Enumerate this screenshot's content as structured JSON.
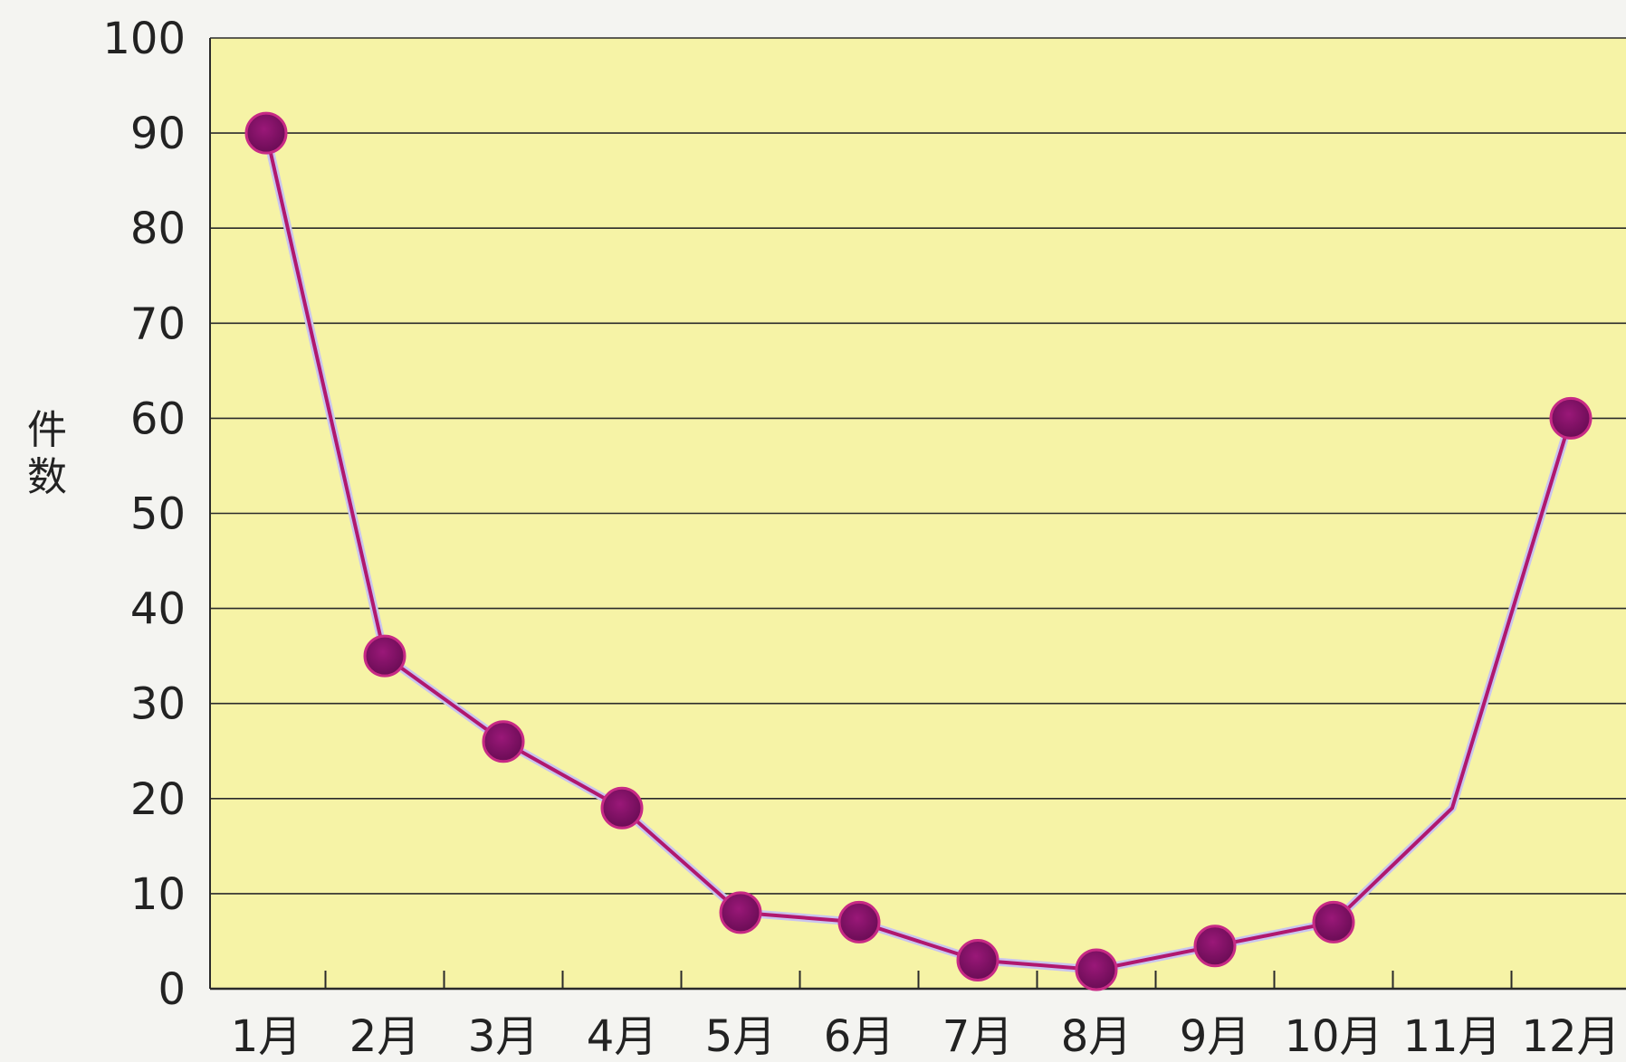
{
  "chart_data": {
    "type": "line",
    "title": "",
    "xlabel": "",
    "ylabel": "件数",
    "ylim": [
      0,
      100
    ],
    "yticks": [
      0,
      10,
      20,
      30,
      40,
      50,
      60,
      70,
      80,
      90,
      100
    ],
    "categories": [
      "1月",
      "2月",
      "3月",
      "4月",
      "5月",
      "6月",
      "7月",
      "8月",
      "9月",
      "10月",
      "11月",
      "12月"
    ],
    "values": [
      90,
      35,
      26,
      19,
      8,
      7,
      3,
      2,
      4.5,
      7,
      19,
      60
    ],
    "markers": [
      true,
      true,
      true,
      true,
      true,
      true,
      true,
      true,
      true,
      true,
      false,
      true
    ],
    "grid": true,
    "colors": {
      "plot_background": "#f6f3a6",
      "page_background": "#f4f4f1",
      "gridline": "#2a2a2a",
      "line": "#b0186e",
      "line_halo": "#c9c4ee",
      "marker_fill": "#7e0f64",
      "marker_edge": "#c72a85",
      "text": "#222222"
    }
  }
}
